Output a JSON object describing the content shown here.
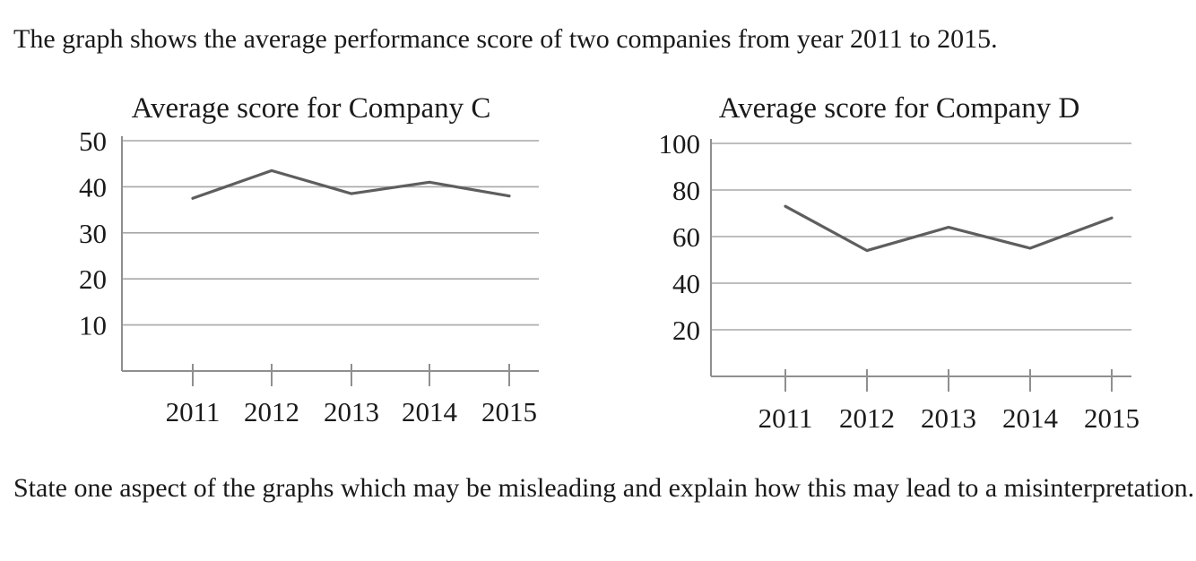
{
  "page": {
    "intro": "The graph shows the average performance score of two companies from year 2011 to 2015.",
    "question": "State one aspect of the graphs which may be misleading and explain how this may lead to a misinterpretation."
  },
  "colors": {
    "background": "#ffffff",
    "text": "#1a1a1a",
    "gridline": "#a8a8a8",
    "axis": "#8f8f8f",
    "series_line": "#5e5e5e"
  },
  "chart_data": [
    {
      "type": "line",
      "title": "Average score for Company C",
      "categories": [
        "2011",
        "2012",
        "2013",
        "2014",
        "2015"
      ],
      "values": [
        37.5,
        43.5,
        38.5,
        41,
        38
      ],
      "xlabel": "",
      "ylabel": "",
      "ylim": [
        0,
        50
      ],
      "yticks": [
        10,
        20,
        30,
        40,
        50
      ],
      "grid": true,
      "legend": false,
      "markers": false
    },
    {
      "type": "line",
      "title": "Average score for Company D",
      "categories": [
        "2011",
        "2012",
        "2013",
        "2014",
        "2015"
      ],
      "values": [
        73,
        54,
        64,
        55,
        68
      ],
      "xlabel": "",
      "ylabel": "",
      "ylim": [
        0,
        100
      ],
      "yticks": [
        20,
        40,
        60,
        80,
        100
      ],
      "grid": true,
      "legend": false,
      "markers": false
    }
  ]
}
